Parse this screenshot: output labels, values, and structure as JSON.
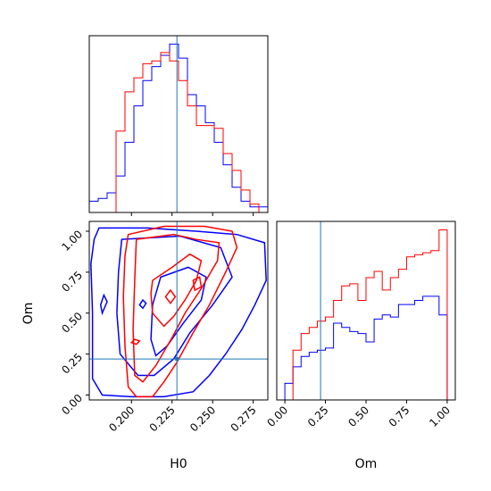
{
  "chart_data": {
    "type": "corner",
    "parameters": [
      "H0",
      "Om"
    ],
    "truth": {
      "H0": 0.228,
      "Om": 0.22
    },
    "colors": {
      "series_blue": "#0000ff",
      "series_red": "#ff0000",
      "truth_line": "#1f77b4"
    },
    "series": [
      {
        "color": "blue"
      },
      {
        "color": "red"
      }
    ],
    "panels": {
      "H0_hist": {
        "xlim": [
          0.174,
          0.284
        ],
        "bin_edges": [
          0.174,
          0.1795,
          0.185,
          0.1905,
          0.196,
          0.2015,
          0.207,
          0.2125,
          0.218,
          0.2235,
          0.229,
          0.2345,
          0.24,
          0.2455,
          0.251,
          0.2565,
          0.262,
          0.2675,
          0.273,
          0.2785,
          0.284
        ],
        "blue": [
          4,
          5,
          7,
          13,
          25,
          38,
          47,
          52,
          56,
          60,
          55,
          42,
          38,
          32,
          25,
          17,
          9,
          4,
          2,
          2
        ],
        "red": [
          0,
          0,
          0,
          29,
          43,
          48,
          53,
          54,
          57,
          54,
          47,
          38,
          31,
          31,
          30,
          21,
          15,
          8,
          3,
          0
        ]
      },
      "joint": {
        "xlim": [
          0.174,
          0.284
        ],
        "ylim": [
          -0.03,
          1.06
        ],
        "blue_contours": [
          [
            [
              0.18,
              1.02
            ],
            [
              0.21,
              1.02
            ],
            [
              0.24,
              1.0
            ],
            [
              0.265,
              0.98
            ],
            [
              0.282,
              0.93
            ],
            [
              0.283,
              0.7
            ],
            [
              0.276,
              0.55
            ],
            [
              0.268,
              0.4
            ],
            [
              0.258,
              0.25
            ],
            [
              0.248,
              0.12
            ],
            [
              0.238,
              0.02
            ],
            [
              0.22,
              -0.01
            ],
            [
              0.2,
              -0.01
            ],
            [
              0.182,
              0.0
            ],
            [
              0.176,
              0.1
            ],
            [
              0.176,
              0.5
            ],
            [
              0.175,
              0.8
            ],
            [
              0.177,
              0.95
            ],
            [
              0.18,
              1.02
            ]
          ],
          [
            [
              0.194,
              0.95
            ],
            [
              0.23,
              0.97
            ],
            [
              0.255,
              0.9
            ],
            [
              0.262,
              0.72
            ],
            [
              0.25,
              0.55
            ],
            [
              0.236,
              0.38
            ],
            [
              0.226,
              0.22
            ],
            [
              0.214,
              0.12
            ],
            [
              0.204,
              0.12
            ],
            [
              0.193,
              0.25
            ],
            [
              0.191,
              0.5
            ],
            [
              0.192,
              0.75
            ],
            [
              0.194,
              0.95
            ]
          ],
          [
            [
              0.218,
              0.72
            ],
            [
              0.235,
              0.78
            ],
            [
              0.246,
              0.72
            ],
            [
              0.243,
              0.58
            ],
            [
              0.232,
              0.44
            ],
            [
              0.222,
              0.3
            ],
            [
              0.215,
              0.24
            ],
            [
              0.212,
              0.34
            ],
            [
              0.213,
              0.55
            ],
            [
              0.218,
              0.72
            ]
          ],
          [
            [
              0.182,
              0.5
            ],
            [
              0.185,
              0.57
            ],
            [
              0.183,
              0.61
            ],
            [
              0.181,
              0.55
            ],
            [
              0.182,
              0.5
            ]
          ],
          [
            [
              0.205,
              0.55
            ],
            [
              0.207,
              0.53
            ],
            [
              0.209,
              0.56
            ],
            [
              0.207,
              0.58
            ],
            [
              0.205,
              0.55
            ]
          ]
        ],
        "red_contours": [
          [
            [
              0.198,
              0.98
            ],
            [
              0.22,
              1.03
            ],
            [
              0.245,
              1.03
            ],
            [
              0.262,
              1.0
            ],
            [
              0.265,
              0.9
            ],
            [
              0.258,
              0.75
            ],
            [
              0.248,
              0.55
            ],
            [
              0.238,
              0.38
            ],
            [
              0.228,
              0.2
            ],
            [
              0.22,
              0.08
            ],
            [
              0.213,
              -0.01
            ],
            [
              0.203,
              -0.01
            ],
            [
              0.198,
              0.05
            ],
            [
              0.196,
              0.3
            ],
            [
              0.195,
              0.6
            ],
            [
              0.196,
              0.85
            ],
            [
              0.198,
              0.98
            ]
          ],
          [
            [
              0.203,
              0.95
            ],
            [
              0.226,
              0.98
            ],
            [
              0.24,
              0.95
            ],
            [
              0.254,
              0.93
            ],
            [
              0.253,
              0.82
            ],
            [
              0.243,
              0.65
            ],
            [
              0.233,
              0.5
            ],
            [
              0.225,
              0.35
            ],
            [
              0.215,
              0.18
            ],
            [
              0.207,
              0.08
            ],
            [
              0.202,
              0.12
            ],
            [
              0.201,
              0.4
            ],
            [
              0.202,
              0.7
            ],
            [
              0.203,
              0.95
            ]
          ],
          [
            [
              0.213,
              0.7
            ],
            [
              0.225,
              0.78
            ],
            [
              0.236,
              0.86
            ],
            [
              0.243,
              0.82
            ],
            [
              0.24,
              0.7
            ],
            [
              0.233,
              0.58
            ],
            [
              0.226,
              0.48
            ],
            [
              0.22,
              0.42
            ],
            [
              0.213,
              0.5
            ],
            [
              0.212,
              0.62
            ],
            [
              0.213,
              0.7
            ]
          ],
          [
            [
              0.221,
              0.6
            ],
            [
              0.224,
              0.64
            ],
            [
              0.227,
              0.6
            ],
            [
              0.224,
              0.56
            ],
            [
              0.221,
              0.6
            ]
          ],
          [
            [
              0.238,
              0.7
            ],
            [
              0.242,
              0.72
            ],
            [
              0.243,
              0.66
            ],
            [
              0.239,
              0.64
            ],
            [
              0.238,
              0.7
            ]
          ],
          [
            [
              0.2,
              0.32
            ],
            [
              0.202,
              0.34
            ],
            [
              0.205,
              0.33
            ],
            [
              0.203,
              0.31
            ],
            [
              0.2,
              0.32
            ]
          ]
        ]
      },
      "Om_hist": {
        "xlim": [
          -0.05,
          1.05
        ],
        "bin_edges": [
          0.0,
          0.05,
          0.1,
          0.15,
          0.2,
          0.25,
          0.3,
          0.35,
          0.4,
          0.45,
          0.5,
          0.55,
          0.6,
          0.65,
          0.7,
          0.75,
          0.8,
          0.85,
          0.9,
          0.95,
          1.0
        ],
        "blue": [
          8,
          16,
          21,
          23,
          24,
          25,
          37,
          35,
          33,
          32,
          28,
          39,
          41,
          40,
          46,
          46,
          48,
          50,
          50,
          41
        ],
        "red": [
          0,
          24,
          32,
          35,
          38,
          40,
          48,
          55,
          56,
          48,
          59,
          62,
          53,
          59,
          63,
          69,
          70,
          71,
          72,
          82
        ]
      }
    },
    "xticks": {
      "H0": [
        "0.200",
        "0.225",
        "0.250",
        "0.275"
      ],
      "Om": [
        "0.00",
        "0.25",
        "0.50",
        "0.75",
        "1.00"
      ]
    },
    "yticks": {
      "Om": [
        "0.00",
        "0.25",
        "0.50",
        "0.75",
        "1.00"
      ]
    },
    "xlabels": {
      "left": "H0",
      "right": "Om"
    },
    "ylabel": "Om"
  }
}
